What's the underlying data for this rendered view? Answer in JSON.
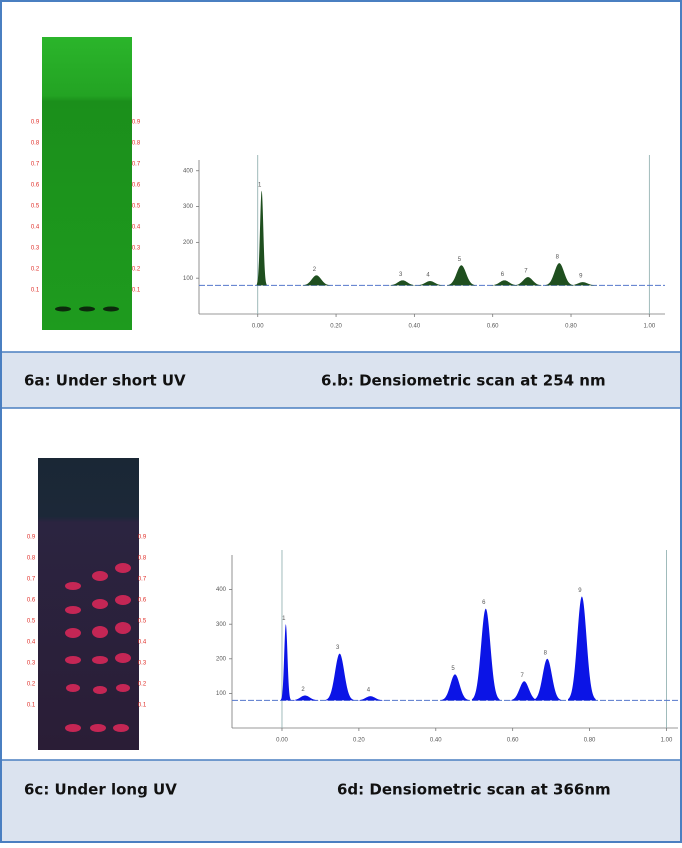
{
  "captions": [
    "6a: Under short UV",
    "6.b: Densiometric scan at 254 nm",
    "6c: Under long UV",
    "6d: Densiometric scan at 366nm"
  ],
  "plates": [
    {
      "scale": [
        0.9,
        0.8,
        0.7,
        0.6,
        0.5,
        0.4,
        0.3,
        0.2,
        0.1
      ]
    },
    {
      "scale": [
        0.9,
        0.8,
        0.7,
        0.6,
        0.5,
        0.4,
        0.3,
        0.2,
        0.1
      ]
    }
  ],
  "chart_data": [
    {
      "type": "area",
      "x": [
        0.01,
        0.15,
        0.37,
        0.44,
        0.52,
        0.63,
        0.69,
        0.77,
        0.83
      ],
      "values": [
        344,
        108,
        94,
        92,
        136,
        94,
        103,
        142,
        89
      ],
      "labels": [
        "1",
        "2",
        "3",
        "4",
        "5",
        "6",
        "7",
        "8",
        "9"
      ],
      "baseline": 80,
      "color": "#1f4f1f",
      "markers": [
        0,
        1
      ],
      "xlim": [
        -0.15,
        1.04
      ],
      "ylim": [
        0,
        430
      ],
      "xticks": [
        {
          "value": 0,
          "label": "0.00"
        },
        {
          "value": 0.2,
          "label": "0.20"
        },
        {
          "value": 0.4,
          "label": "0.40"
        },
        {
          "value": 0.6,
          "label": "0.60"
        },
        {
          "value": 0.8,
          "label": "0.80"
        },
        {
          "value": 1,
          "label": "1.00"
        }
      ],
      "yticks": [
        100,
        200,
        300,
        400
      ]
    },
    {
      "type": "area",
      "x": [
        0.01,
        0.06,
        0.15,
        0.23,
        0.45,
        0.53,
        0.63,
        0.69,
        0.78
      ],
      "values": [
        300,
        94,
        215,
        92,
        155,
        345,
        135,
        200,
        380
      ],
      "labels": [
        "1",
        "2",
        "3",
        "4",
        "5",
        "6",
        "7",
        "8",
        "9"
      ],
      "baseline": 80,
      "color": "#0b14e6",
      "markers": [
        0,
        1
      ],
      "xlim": [
        -0.13,
        1.03
      ],
      "ylim": [
        0,
        500
      ],
      "xticks": [
        {
          "value": 0,
          "label": "0.00"
        },
        {
          "value": 0.2,
          "label": "0.20"
        },
        {
          "value": 0.4,
          "label": "0.40"
        },
        {
          "value": 0.6,
          "label": "0.60"
        },
        {
          "value": 0.8,
          "label": "0.80"
        },
        {
          "value": 1,
          "label": "1.00"
        }
      ],
      "yticks": [
        100,
        200,
        300,
        400
      ]
    }
  ]
}
